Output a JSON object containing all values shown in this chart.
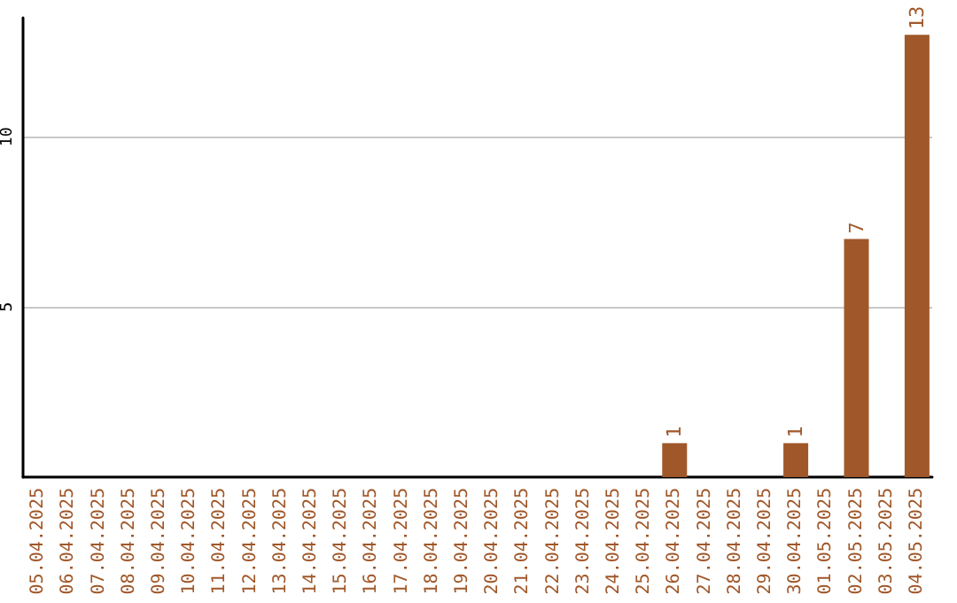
{
  "chart_data": {
    "type": "bar",
    "categories": [
      "05.04.2025",
      "06.04.2025",
      "07.04.2025",
      "08.04.2025",
      "09.04.2025",
      "10.04.2025",
      "11.04.2025",
      "12.04.2025",
      "13.04.2025",
      "14.04.2025",
      "15.04.2025",
      "16.04.2025",
      "17.04.2025",
      "18.04.2025",
      "19.04.2025",
      "20.04.2025",
      "21.04.2025",
      "22.04.2025",
      "23.04.2025",
      "24.04.2025",
      "25.04.2025",
      "26.04.2025",
      "27.04.2025",
      "28.04.2025",
      "29.04.2025",
      "30.04.2025",
      "01.05.2025",
      "02.05.2025",
      "03.05.2025",
      "04.05.2025"
    ],
    "values": [
      0,
      0,
      0,
      0,
      0,
      0,
      0,
      0,
      0,
      0,
      0,
      0,
      0,
      0,
      0,
      0,
      0,
      0,
      0,
      0,
      0,
      1,
      0,
      0,
      0,
      1,
      0,
      7,
      0,
      13
    ],
    "value_labels": [
      null,
      null,
      null,
      null,
      null,
      null,
      null,
      null,
      null,
      null,
      null,
      null,
      null,
      null,
      null,
      null,
      null,
      null,
      null,
      null,
      null,
      "1",
      null,
      null,
      null,
      "1",
      null,
      "7",
      null,
      "13"
    ],
    "color": "#a0582a",
    "ylim": [
      0,
      13.5
    ],
    "yticks": [
      5,
      10
    ],
    "grid": "y"
  }
}
